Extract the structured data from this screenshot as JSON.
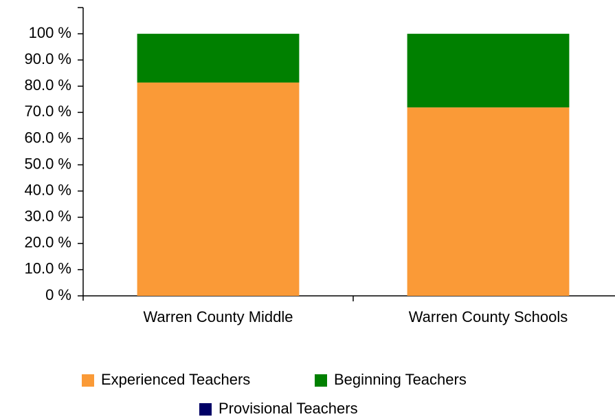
{
  "chart_data": {
    "type": "stacked_bar",
    "categories": [
      "Warren County Middle",
      "Warren County Schools"
    ],
    "series": [
      {
        "name": "Experienced Teachers",
        "color": "#fa9a37",
        "values": [
          81.4,
          71.9
        ]
      },
      {
        "name": "Beginning Teachers",
        "color": "#008000",
        "values": [
          18.6,
          28.1
        ]
      },
      {
        "name": "Provisional Teachers",
        "color": "#000066",
        "values": [
          0,
          0
        ]
      }
    ],
    "ylim": [
      0,
      110
    ],
    "yticks": [
      {
        "value": 0,
        "label": "0 %"
      },
      {
        "value": 10,
        "label": "10.0 %"
      },
      {
        "value": 20,
        "label": "20.0 %"
      },
      {
        "value": 30,
        "label": "30.0 %"
      },
      {
        "value": 40,
        "label": "40.0 %"
      },
      {
        "value": 50,
        "label": "50.0 %"
      },
      {
        "value": 60,
        "label": "60.0 %"
      },
      {
        "value": 70,
        "label": "70.0 %"
      },
      {
        "value": 80,
        "label": "80.0 %"
      },
      {
        "value": 90,
        "label": "90.0 %"
      },
      {
        "value": 100,
        "label": "100 %"
      }
    ],
    "legend": "bottom"
  }
}
